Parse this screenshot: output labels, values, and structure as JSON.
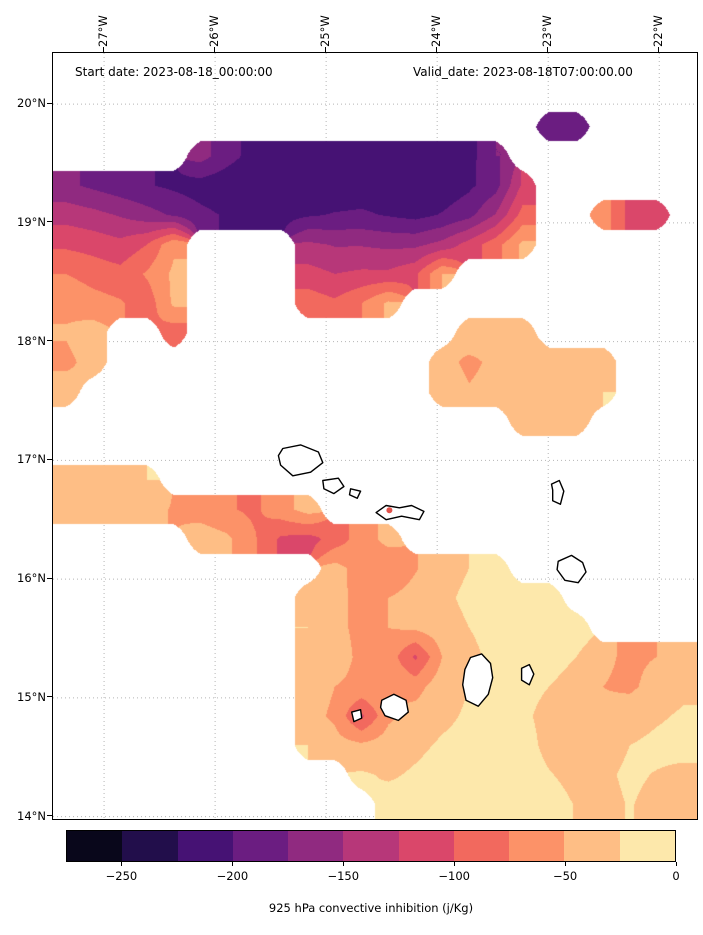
{
  "chart_data": {
    "type": "heatmap",
    "annotations": {
      "start": "Start date: 2023-08-18_00:00:00",
      "valid": "Valid_date: 2023-08-18T07:00:00.00"
    },
    "x_axis": {
      "side": "top",
      "tick_labels": [
        "27°W",
        "26°W",
        "25°W",
        "24°W",
        "23°W",
        "22°W"
      ],
      "tick_lons": [
        -27,
        -26,
        -25,
        -24,
        -23,
        -22
      ]
    },
    "y_axis": {
      "side": "left",
      "tick_labels": [
        "20°N",
        "19°N",
        "18°N",
        "17°N",
        "16°N",
        "15°N",
        "14°N"
      ],
      "tick_lats": [
        20,
        19,
        18,
        17,
        16,
        15,
        14
      ]
    },
    "lon_range": [
      -27.46,
      -21.66
    ],
    "lat_range": [
      13.98,
      20.43
    ],
    "grid_on": true,
    "colorbar": {
      "label": "925 hPa convective inhibition (j/Kg)",
      "vmin": -275,
      "vmax": 0,
      "band_size": 25,
      "band_colors": [
        "#09071b",
        "#220e4b",
        "#461274",
        "#6b1d81",
        "#902a80",
        "#b73779",
        "#da476a",
        "#f2695e",
        "#fc9268",
        "#febe85",
        "#fde8ab"
      ],
      "tick_values": [
        -250,
        -200,
        -150,
        -100,
        -50,
        0
      ],
      "tick_labels": [
        "−250",
        "−200",
        "−150",
        "−100",
        "−50",
        "0"
      ]
    },
    "field": {
      "units": "j/Kg",
      "mask_value": 0,
      "nx": 24,
      "ny": 26,
      "order": "rows north-to-south, cols west-to-east, cell values in j/Kg",
      "values": [
        [
          0,
          0,
          0,
          0,
          0,
          0,
          0,
          0,
          0,
          0,
          0,
          0,
          0,
          0,
          0,
          0,
          0,
          0,
          0,
          0,
          0,
          0,
          0,
          0
        ],
        [
          0,
          0,
          0,
          0,
          0,
          0,
          0,
          0,
          0,
          0,
          0,
          0,
          0,
          0,
          0,
          0,
          0,
          0,
          0,
          0,
          0,
          0,
          0,
          0
        ],
        [
          0,
          0,
          0,
          0,
          0,
          0,
          0,
          0,
          0,
          0,
          0,
          0,
          0,
          0,
          0,
          0,
          0,
          0,
          -190,
          -185,
          0,
          0,
          0,
          0
        ],
        [
          0,
          0,
          0,
          0,
          0,
          -165,
          -190,
          -210,
          -220,
          -222,
          -220,
          -215,
          -218,
          -222,
          -225,
          -210,
          -175,
          0,
          0,
          0,
          0,
          0,
          0,
          0
        ],
        [
          -170,
          -180,
          -190,
          -198,
          -205,
          -212,
          -218,
          -222,
          -225,
          -222,
          -218,
          -215,
          -218,
          -222,
          -218,
          -205,
          -185,
          -120,
          0,
          0,
          0,
          0,
          0,
          0
        ],
        [
          -135,
          -142,
          -152,
          -165,
          -178,
          -193,
          -203,
          -208,
          -208,
          -203,
          -198,
          -196,
          -202,
          -208,
          -198,
          -183,
          -148,
          -90,
          0,
          0,
          -60,
          -110,
          -105,
          0
        ],
        [
          -105,
          -110,
          -118,
          -100,
          -55,
          0,
          0,
          0,
          0,
          -145,
          -152,
          -152,
          -156,
          -156,
          -142,
          -115,
          -85,
          -45,
          0,
          0,
          0,
          0,
          0,
          0
        ],
        [
          -75,
          -85,
          -92,
          -72,
          -45,
          0,
          0,
          0,
          0,
          -115,
          -125,
          -120,
          -120,
          -105,
          -50,
          0,
          0,
          0,
          0,
          0,
          0,
          0,
          0,
          0
        ],
        [
          -55,
          -65,
          -72,
          -90,
          -45,
          0,
          0,
          0,
          0,
          -85,
          -95,
          -75,
          -45,
          0,
          0,
          0,
          0,
          0,
          0,
          0,
          0,
          0,
          0,
          0
        ],
        [
          -48,
          -38,
          0,
          0,
          -90,
          0,
          0,
          0,
          0,
          0,
          0,
          0,
          0,
          0,
          0,
          -35,
          -45,
          -38,
          0,
          0,
          0,
          0,
          0,
          0
        ],
        [
          -55,
          -42,
          0,
          0,
          0,
          0,
          0,
          0,
          0,
          0,
          0,
          0,
          0,
          0,
          -42,
          -55,
          -45,
          -35,
          -42,
          -50,
          -35,
          0,
          0,
          0
        ],
        [
          -38,
          0,
          0,
          0,
          0,
          0,
          0,
          0,
          0,
          0,
          0,
          0,
          0,
          0,
          -32,
          -48,
          -42,
          -35,
          -35,
          -45,
          -25,
          0,
          0,
          0
        ],
        [
          0,
          0,
          0,
          0,
          0,
          0,
          0,
          0,
          0,
          0,
          0,
          0,
          0,
          0,
          0,
          0,
          0,
          -28,
          -32,
          -28,
          0,
          0,
          0,
          0
        ],
        [
          0,
          0,
          0,
          0,
          0,
          0,
          0,
          0,
          0,
          0,
          0,
          0,
          0,
          0,
          0,
          0,
          0,
          0,
          0,
          0,
          0,
          0,
          0,
          0
        ],
        [
          -45,
          -40,
          -30,
          -25,
          0,
          0,
          0,
          0,
          0,
          0,
          0,
          0,
          0,
          0,
          0,
          0,
          0,
          0,
          0,
          0,
          0,
          0,
          0,
          0
        ],
        [
          -30,
          -30,
          -32,
          -42,
          -52,
          -62,
          -72,
          -80,
          -60,
          -40,
          0,
          0,
          0,
          0,
          0,
          0,
          0,
          0,
          0,
          0,
          0,
          0,
          0,
          0
        ],
        [
          0,
          0,
          0,
          0,
          0,
          -35,
          -45,
          -72,
          -105,
          -110,
          -90,
          -62,
          -42,
          0,
          0,
          0,
          0,
          0,
          0,
          0,
          0,
          0,
          0,
          0
        ],
        [
          0,
          0,
          0,
          0,
          0,
          0,
          0,
          0,
          0,
          0,
          -40,
          -62,
          -72,
          -52,
          -35,
          -25,
          -18,
          0,
          0,
          0,
          0,
          0,
          0,
          0
        ],
        [
          0,
          0,
          0,
          0,
          0,
          0,
          0,
          0,
          0,
          -30,
          -45,
          -55,
          -50,
          -40,
          -30,
          -20,
          -15,
          -12,
          -8,
          0,
          0,
          0,
          0,
          0
        ],
        [
          0,
          0,
          0,
          0,
          0,
          0,
          0,
          0,
          0,
          -25,
          -45,
          -55,
          -50,
          -45,
          -35,
          -25,
          -18,
          -15,
          -12,
          -10,
          0,
          0,
          0,
          0
        ],
        [
          0,
          0,
          0,
          0,
          0,
          0,
          0,
          0,
          0,
          -30,
          -40,
          -55,
          -60,
          -105,
          -50,
          -30,
          -20,
          -18,
          -15,
          -25,
          -45,
          -55,
          -50,
          -45
        ],
        [
          0,
          0,
          0,
          0,
          0,
          0,
          0,
          0,
          0,
          -35,
          -50,
          -55,
          -50,
          -60,
          -35,
          -25,
          -20,
          -20,
          -25,
          -35,
          -50,
          -55,
          -40,
          -30
        ],
        [
          0,
          0,
          0,
          0,
          0,
          0,
          0,
          0,
          0,
          -40,
          -55,
          -105,
          -55,
          -40,
          -30,
          -22,
          -18,
          -22,
          -30,
          -40,
          -45,
          -35,
          -28,
          -22
        ],
        [
          0,
          0,
          0,
          0,
          0,
          0,
          0,
          0,
          0,
          -25,
          -40,
          -45,
          -38,
          -30,
          -22,
          -18,
          -15,
          -18,
          -30,
          -40,
          -32,
          -25,
          -20,
          -18
        ],
        [
          0,
          0,
          0,
          0,
          0,
          0,
          0,
          0,
          0,
          0,
          0,
          -22,
          -28,
          -22,
          -16,
          -14,
          -14,
          -16,
          -24,
          -30,
          -28,
          -22,
          -26,
          -30
        ],
        [
          0,
          0,
          0,
          0,
          0,
          0,
          0,
          0,
          0,
          0,
          0,
          0,
          -15,
          -18,
          -12,
          -10,
          -12,
          -14,
          -18,
          -26,
          -30,
          -24,
          -30,
          -34
        ]
      ]
    },
    "coastlines": [
      [
        [
          -25.43,
          17.04
        ],
        [
          -25.39,
          17.1
        ],
        [
          -25.23,
          17.13
        ],
        [
          -25.07,
          17.07
        ],
        [
          -25.03,
          16.98
        ],
        [
          -25.14,
          16.9
        ],
        [
          -25.3,
          16.87
        ],
        [
          -25.41,
          16.96
        ]
      ],
      [
        [
          -25.03,
          16.83
        ],
        [
          -24.89,
          16.85
        ],
        [
          -24.84,
          16.78
        ],
        [
          -24.93,
          16.72
        ],
        [
          -25.02,
          16.76
        ]
      ],
      [
        [
          -24.78,
          16.76
        ],
        [
          -24.69,
          16.74
        ],
        [
          -24.72,
          16.68
        ],
        [
          -24.79,
          16.71
        ]
      ],
      [
        [
          -24.55,
          16.56
        ],
        [
          -24.46,
          16.62
        ],
        [
          -24.34,
          16.6
        ],
        [
          -24.23,
          16.62
        ],
        [
          -24.12,
          16.57
        ],
        [
          -24.16,
          16.5
        ],
        [
          -24.32,
          16.53
        ],
        [
          -24.46,
          16.5
        ]
      ],
      [
        [
          -22.97,
          16.8
        ],
        [
          -22.9,
          16.83
        ],
        [
          -22.86,
          16.74
        ],
        [
          -22.89,
          16.63
        ],
        [
          -22.96,
          16.66
        ],
        [
          -22.96,
          16.75
        ]
      ],
      [
        [
          -22.91,
          16.15
        ],
        [
          -22.79,
          16.2
        ],
        [
          -22.69,
          16.14
        ],
        [
          -22.66,
          16.06
        ],
        [
          -22.73,
          15.97
        ],
        [
          -22.85,
          15.99
        ],
        [
          -22.92,
          16.08
        ]
      ],
      [
        [
          -23.24,
          15.25
        ],
        [
          -23.17,
          15.28
        ],
        [
          -23.13,
          15.2
        ],
        [
          -23.17,
          15.11
        ],
        [
          -23.24,
          15.15
        ]
      ],
      [
        [
          -23.7,
          15.34
        ],
        [
          -23.6,
          15.37
        ],
        [
          -23.52,
          15.29
        ],
        [
          -23.5,
          15.17
        ],
        [
          -23.54,
          15.03
        ],
        [
          -23.63,
          14.93
        ],
        [
          -23.74,
          14.98
        ],
        [
          -23.77,
          15.11
        ],
        [
          -23.75,
          15.24
        ]
      ],
      [
        [
          -24.5,
          14.98
        ],
        [
          -24.39,
          15.03
        ],
        [
          -24.28,
          14.98
        ],
        [
          -24.26,
          14.88
        ],
        [
          -24.35,
          14.81
        ],
        [
          -24.47,
          14.85
        ],
        [
          -24.51,
          14.92
        ]
      ],
      [
        [
          -24.77,
          14.88
        ],
        [
          -24.69,
          14.9
        ],
        [
          -24.68,
          14.83
        ],
        [
          -24.75,
          14.8
        ]
      ]
    ],
    "spots": [
      {
        "lon": -24.43,
        "lat": 16.58,
        "r": 3,
        "color": "#e2524b"
      }
    ]
  }
}
